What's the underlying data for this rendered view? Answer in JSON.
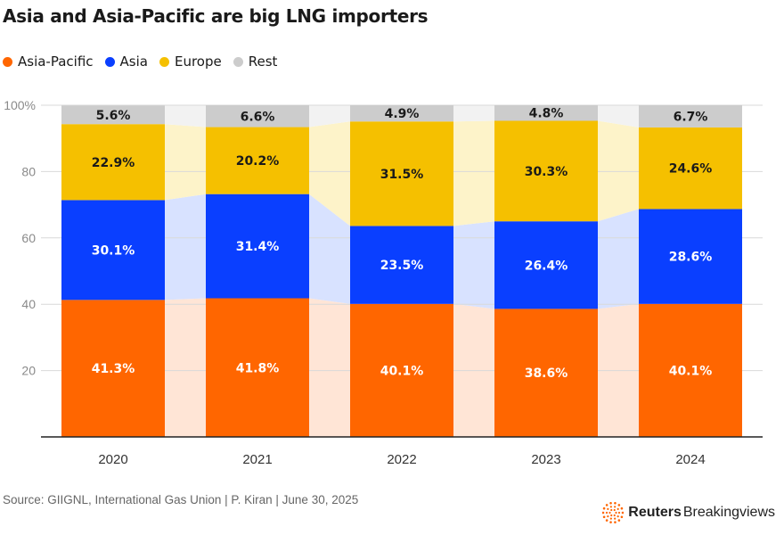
{
  "chart_data": {
    "type": "bar",
    "title": "Asia and Asia-Pacific are big LNG importers",
    "categories": [
      "2020",
      "2021",
      "2022",
      "2023",
      "2024"
    ],
    "series": [
      {
        "name": "Asia-Pacific",
        "color": "#ff6600",
        "band_color": "#ffe5d6",
        "values": [
          41.3,
          41.8,
          40.1,
          38.6,
          40.1
        ],
        "labels": [
          "41.3%",
          "41.8%",
          "40.1%",
          "38.6%",
          "40.1%"
        ]
      },
      {
        "name": "Asia",
        "color": "#0a3fff",
        "band_color": "#d8e2ff",
        "values": [
          30.1,
          31.4,
          23.5,
          26.4,
          28.6
        ],
        "labels": [
          "30.1%",
          "31.4%",
          "23.5%",
          "26.4%",
          "28.6%"
        ]
      },
      {
        "name": "Europe",
        "color": "#f5c000",
        "band_color": "#fdf3c9",
        "values": [
          22.9,
          20.2,
          31.5,
          30.3,
          24.6
        ],
        "labels": [
          "22.9%",
          "20.2%",
          "31.5%",
          "30.3%",
          "24.6%"
        ]
      },
      {
        "name": "Rest",
        "color": "#cccccc",
        "band_color": "#f2f2f2",
        "values": [
          5.6,
          6.6,
          4.9,
          4.8,
          6.7
        ],
        "labels": [
          "5.6%",
          "6.6%",
          "4.9%",
          "4.8%",
          "6.7%"
        ]
      }
    ],
    "y_ticks": [
      {
        "value": 20,
        "label": "20"
      },
      {
        "value": 40,
        "label": "40"
      },
      {
        "value": 60,
        "label": "60"
      },
      {
        "value": 80,
        "label": "80"
      },
      {
        "value": 100,
        "label": "100%"
      }
    ],
    "ylim": [
      0,
      100
    ],
    "stacked": true,
    "legend_position": "top-left"
  },
  "source": "Source: GIIGNL, International Gas Union | P. Kiran | June 30, 2025",
  "logo": {
    "brand": "Reuters",
    "sub": "Breakingviews",
    "color": "#ff6600"
  }
}
